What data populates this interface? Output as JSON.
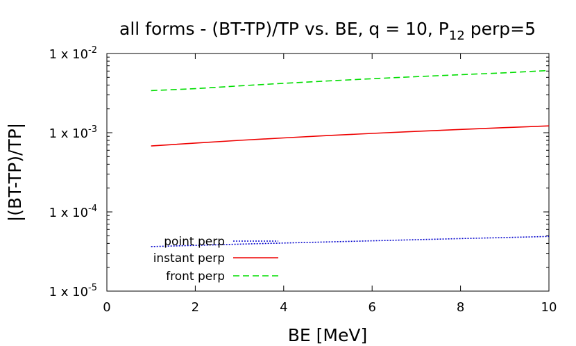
{
  "chart_data": {
    "type": "line",
    "title": {
      "main": "all forms - (BT-TP)/TP vs. BE, q = 10, P",
      "sub": "12",
      "tail": " perp=5"
    },
    "xlabel": "BE [MeV]",
    "ylabel": "|(BT-TP)/TP|",
    "xlim": [
      0,
      10
    ],
    "ylim": [
      1e-05,
      0.01
    ],
    "yscale": "log",
    "grid": false,
    "legend_position": "bottom-left",
    "x_ticks": [
      {
        "value": 0,
        "label": "0"
      },
      {
        "value": 2,
        "label": "2"
      },
      {
        "value": 4,
        "label": "4"
      },
      {
        "value": 6,
        "label": "6"
      },
      {
        "value": 8,
        "label": "8"
      },
      {
        "value": 10,
        "label": "10"
      }
    ],
    "y_ticks": [
      {
        "value": 0.01,
        "base": "1 x 10",
        "exp": "-2"
      },
      {
        "value": 0.001,
        "base": "1 x 10",
        "exp": "-3"
      },
      {
        "value": 0.0001,
        "base": "1 x 10",
        "exp": "-4"
      },
      {
        "value": 1e-05,
        "base": "1 x 10",
        "exp": "-5"
      }
    ],
    "series": [
      {
        "name": "point perp",
        "color": "#0000cc",
        "dash": "dotted",
        "x": [
          1,
          2,
          3,
          4,
          5,
          6,
          7,
          8,
          9,
          10
        ],
        "y": [
          3.65e-05,
          3.78e-05,
          3.92e-05,
          4.05e-05,
          4.18e-05,
          4.32e-05,
          4.46e-05,
          4.6e-05,
          4.75e-05,
          4.9e-05
        ]
      },
      {
        "name": "instant perp",
        "color": "#ee0000",
        "dash": "solid",
        "x": [
          1,
          2,
          3,
          4,
          5,
          6,
          7,
          8,
          9,
          10
        ],
        "y": [
          0.00068,
          0.00074,
          0.0008,
          0.00086,
          0.00092,
          0.00098,
          0.00104,
          0.0011,
          0.00116,
          0.00122
        ]
      },
      {
        "name": "front perp",
        "color": "#00dd00",
        "dash": "dashed",
        "x": [
          1,
          2,
          3,
          4,
          5,
          6,
          7,
          8,
          9,
          10
        ],
        "y": [
          0.0034,
          0.0036,
          0.0039,
          0.0042,
          0.0045,
          0.0048,
          0.0051,
          0.0054,
          0.0057,
          0.0061
        ]
      }
    ]
  }
}
